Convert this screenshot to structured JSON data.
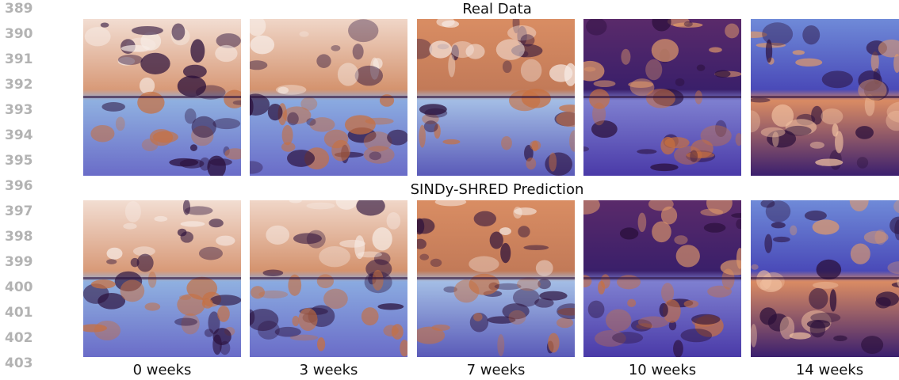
{
  "line_numbers": [
    "389",
    "390",
    "391",
    "392",
    "393",
    "394",
    "395",
    "396",
    "397",
    "398",
    "399",
    "400",
    "401",
    "402",
    "403"
  ],
  "figure": {
    "rows": [
      {
        "title": "Real Data"
      },
      {
        "title": "SINDy-SHRED Prediction"
      }
    ],
    "columns": [
      "0 weeks",
      "3 weeks",
      "7 weeks",
      "10 weeks",
      "14 weeks"
    ]
  }
}
